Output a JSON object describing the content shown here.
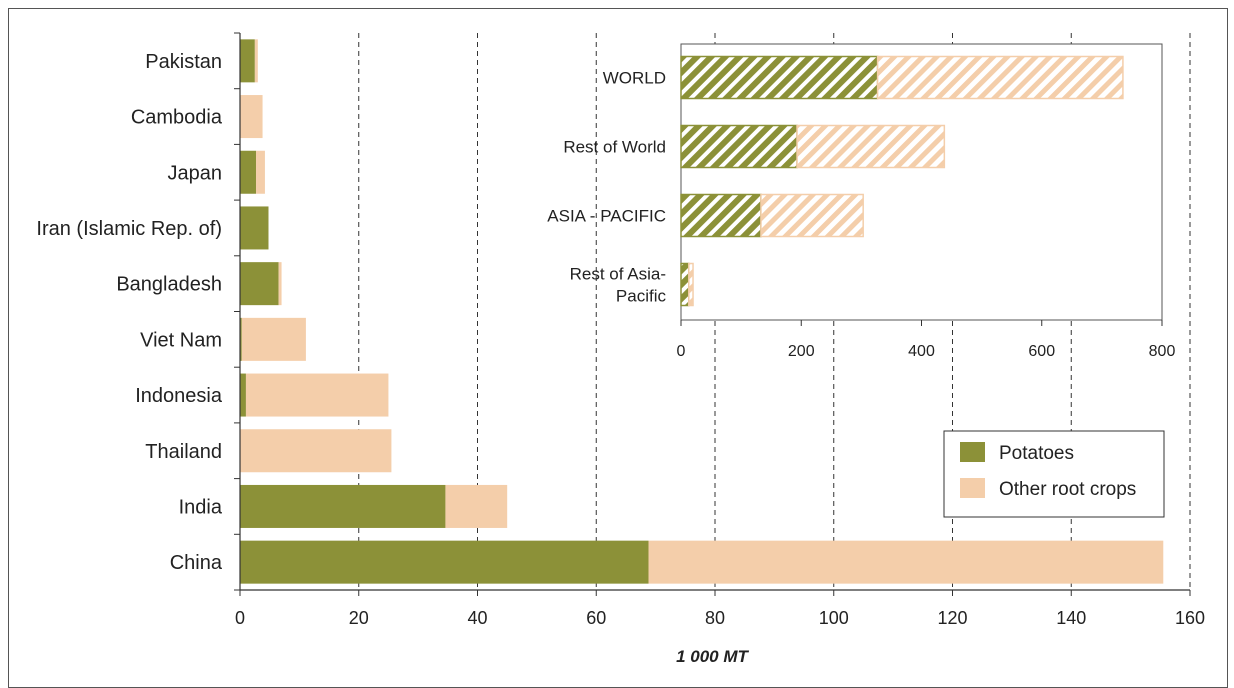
{
  "chart_data": [
    {
      "type": "bar",
      "orientation": "horizontal",
      "stacked": true,
      "xlabel": "1 000 MT",
      "xlim": [
        0,
        160
      ],
      "xticks": [
        0,
        20,
        40,
        60,
        80,
        100,
        120,
        140,
        160
      ],
      "categories": [
        "Pakistan",
        "Cambodia",
        "Japan",
        "Iran (Islamic Rep. of)",
        "Bangladesh",
        "Viet Nam",
        "Indonesia",
        "Thailand",
        "India",
        "China"
      ],
      "series": [
        {
          "name": "Potatoes",
          "color": "#8c9138",
          "values": [
            2.5,
            0,
            2.7,
            4.8,
            6.5,
            0.3,
            1.0,
            0,
            34.6,
            68.8
          ]
        },
        {
          "name": "Other root crops",
          "color": "#f4ceaa",
          "values": [
            0.5,
            3.8,
            1.5,
            0,
            0.5,
            10.8,
            24.0,
            25.5,
            10.4,
            86.7
          ]
        }
      ],
      "grid": "vertical-dashed",
      "legend": {
        "placement": "bottom-right",
        "entries": [
          "Potatoes",
          "Other root crops"
        ]
      }
    },
    {
      "type": "bar",
      "orientation": "horizontal",
      "stacked": true,
      "inset": true,
      "xlim": [
        0,
        800
      ],
      "xticks": [
        0,
        200,
        400,
        600,
        800
      ],
      "categories": [
        "WORLD",
        "Rest of World",
        "ASIA - PACIFIC",
        "Rest of Asia-Pacific"
      ],
      "category_lines": [
        [
          "WORLD"
        ],
        [
          "Rest of World"
        ],
        [
          "ASIA - PACIFIC"
        ],
        [
          "Rest of Asia-",
          "Pacific"
        ]
      ],
      "series": [
        {
          "name": "Potatoes",
          "color": "#8c9138",
          "values": [
            327,
            193,
            133,
            13
          ]
        },
        {
          "name": "Other root crops",
          "color": "#f4ceaa",
          "values": [
            408,
            245,
            170,
            7
          ]
        }
      ]
    }
  ]
}
